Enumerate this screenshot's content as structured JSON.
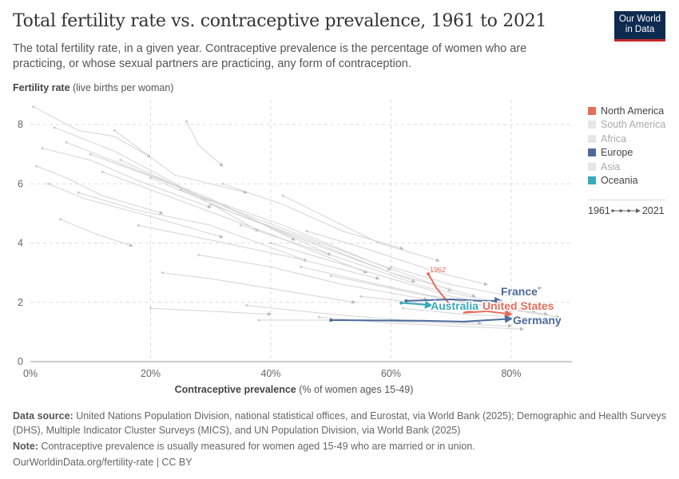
{
  "header": {
    "title": "Total fertility rate vs. contraceptive prevalence, 1961 to 2021",
    "subtitle": "The total fertility rate, in a given year. Contraceptive prevalence is the percentage of women who are practicing, or whose sexual partners are practicing, any form of contraception.",
    "logo": "Our World in Data"
  },
  "chart_data": {
    "type": "scatter",
    "title": "Total fertility rate vs. contraceptive prevalence, 1961 to 2021",
    "ylabel_bold": "Fertility rate",
    "ylabel_rest": " (live births per woman)",
    "xlabel_bold": "Contraceptive prevalence",
    "xlabel_rest": " (% of women ages 15-49)",
    "xlim": [
      0,
      90
    ],
    "ylim": [
      0,
      8.7
    ],
    "x_ticks": [
      "0%",
      "20%",
      "40%",
      "60%",
      "80%"
    ],
    "x_tick_values": [
      0,
      20,
      40,
      60,
      80
    ],
    "y_ticks": [
      "0",
      "2",
      "4",
      "6",
      "8"
    ],
    "y_tick_values": [
      0,
      2,
      4,
      6,
      8
    ],
    "grid": true,
    "legend": [
      {
        "name": "North America",
        "color": "#e56e5a",
        "active": true
      },
      {
        "name": "South America",
        "color": "#e6e6e6",
        "active": false
      },
      {
        "name": "Africa",
        "color": "#e6e6e6",
        "active": false
      },
      {
        "name": "Europe",
        "color": "#4c6a9c",
        "active": true
      },
      {
        "name": "Asia",
        "color": "#e6e6e6",
        "active": false
      },
      {
        "name": "Oceania",
        "color": "#38aaba",
        "active": true
      }
    ],
    "legend_placement": "right",
    "timeline": {
      "start": "1961",
      "end": "2021"
    },
    "series": [
      {
        "name": "United States",
        "region": "North America",
        "color": "#e56e5a",
        "start_label": "1962",
        "points": [
          [
            66.2,
            2.96
          ],
          [
            67.5,
            2.5
          ],
          [
            69.5,
            2.0
          ],
          [
            71,
            1.85
          ],
          [
            74,
            1.75
          ],
          [
            72,
            1.65
          ],
          [
            76,
            1.7
          ],
          [
            80,
            1.6
          ]
        ]
      },
      {
        "name": "France",
        "region": "Europe",
        "color": "#4c6a9c",
        "points": [
          [
            62.5,
            2.05
          ],
          [
            70,
            2.1
          ],
          [
            75,
            2.05
          ],
          [
            78.3,
            2.05
          ]
        ]
      },
      {
        "name": "Germany",
        "region": "Europe",
        "color": "#4c6a9c",
        "points": [
          [
            50,
            1.4
          ],
          [
            65,
            1.38
          ],
          [
            72,
            1.35
          ],
          [
            80,
            1.45
          ]
        ]
      },
      {
        "name": "Australia",
        "region": "Oceania",
        "color": "#38aaba",
        "points": [
          [
            61.7,
            1.98
          ],
          [
            64,
            1.95
          ],
          [
            66.7,
            1.9
          ]
        ]
      }
    ],
    "background_series": [
      [
        [
          0.5,
          8.6
        ],
        [
          8,
          7.8
        ],
        [
          14,
          7.6
        ],
        [
          20,
          6.9
        ]
      ],
      [
        [
          2,
          7.2
        ],
        [
          10,
          6.8
        ],
        [
          18,
          6.1
        ],
        [
          30,
          5.2
        ]
      ],
      [
        [
          1,
          6.6
        ],
        [
          6,
          6.2
        ],
        [
          12,
          5.6
        ],
        [
          22,
          5.0
        ]
      ],
      [
        [
          4,
          7.9
        ],
        [
          14,
          7.1
        ],
        [
          26,
          5.8
        ],
        [
          38,
          4.4
        ]
      ],
      [
        [
          6,
          7.4
        ],
        [
          16,
          6.6
        ],
        [
          30,
          5.5
        ],
        [
          44,
          4.1
        ]
      ],
      [
        [
          3,
          6.0
        ],
        [
          9,
          5.5
        ],
        [
          20,
          4.9
        ],
        [
          32,
          4.2
        ]
      ],
      [
        [
          10,
          7.0
        ],
        [
          22,
          6.1
        ],
        [
          35,
          5.0
        ],
        [
          50,
          3.6
        ]
      ],
      [
        [
          12,
          6.4
        ],
        [
          24,
          5.5
        ],
        [
          40,
          4.3
        ],
        [
          56,
          3.0
        ]
      ],
      [
        [
          8,
          5.7
        ],
        [
          18,
          5.1
        ],
        [
          30,
          4.6
        ],
        [
          46,
          3.4
        ]
      ],
      [
        [
          15,
          6.8
        ],
        [
          28,
          5.6
        ],
        [
          42,
          4.6
        ],
        [
          60,
          3.1
        ]
      ],
      [
        [
          20,
          6.2
        ],
        [
          34,
          5.0
        ],
        [
          48,
          3.9
        ],
        [
          64,
          2.7
        ]
      ],
      [
        [
          25,
          5.8
        ],
        [
          38,
          4.8
        ],
        [
          55,
          3.5
        ],
        [
          70,
          2.4
        ]
      ],
      [
        [
          18,
          4.6
        ],
        [
          30,
          4.1
        ],
        [
          44,
          3.5
        ],
        [
          58,
          2.8
        ]
      ],
      [
        [
          30,
          5.3
        ],
        [
          45,
          4.2
        ],
        [
          60,
          3.0
        ],
        [
          74,
          2.2
        ]
      ],
      [
        [
          35,
          4.6
        ],
        [
          50,
          3.6
        ],
        [
          66,
          2.5
        ],
        [
          80,
          1.9
        ]
      ],
      [
        [
          40,
          4.0
        ],
        [
          55,
          3.1
        ],
        [
          70,
          2.2
        ],
        [
          84,
          1.7
        ]
      ],
      [
        [
          45,
          3.2
        ],
        [
          58,
          2.6
        ],
        [
          72,
          2.0
        ],
        [
          86,
          1.6
        ]
      ],
      [
        [
          26,
          8.1
        ],
        [
          28,
          7.3
        ],
        [
          32,
          6.6
        ]
      ],
      [
        [
          50,
          2.9
        ],
        [
          64,
          2.3
        ],
        [
          78,
          1.8
        ],
        [
          88,
          1.5
        ]
      ],
      [
        [
          36,
          1.9
        ],
        [
          50,
          1.6
        ],
        [
          62,
          1.4
        ],
        [
          75,
          1.3
        ]
      ],
      [
        [
          20,
          1.8
        ],
        [
          30,
          1.7
        ],
        [
          40,
          1.6
        ]
      ],
      [
        [
          48,
          1.5
        ],
        [
          60,
          1.3
        ],
        [
          70,
          1.2
        ],
        [
          82,
          1.1
        ]
      ],
      [
        [
          55,
          2.2
        ],
        [
          68,
          1.9
        ],
        [
          80,
          1.7
        ],
        [
          87,
          1.9
        ]
      ],
      [
        [
          28,
          3.6
        ],
        [
          40,
          3.2
        ],
        [
          52,
          2.6
        ],
        [
          66,
          2.1
        ]
      ],
      [
        [
          22,
          3.0
        ],
        [
          30,
          2.8
        ],
        [
          42,
          2.4
        ],
        [
          54,
          2.0
        ]
      ],
      [
        [
          60,
          3.2
        ],
        [
          70,
          2.6
        ],
        [
          80,
          2.2
        ],
        [
          85,
          2.5
        ]
      ],
      [
        [
          32,
          6.0
        ],
        [
          42,
          5.3
        ],
        [
          52,
          4.4
        ],
        [
          62,
          3.8
        ]
      ],
      [
        [
          5,
          4.8
        ],
        [
          11,
          4.3
        ],
        [
          17,
          3.9
        ]
      ],
      [
        [
          38,
          1.4
        ],
        [
          55,
          1.4
        ],
        [
          68,
          1.3
        ],
        [
          80,
          1.2
        ]
      ],
      [
        [
          62,
          1.8
        ],
        [
          72,
          1.6
        ],
        [
          82,
          1.5
        ],
        [
          88,
          1.4
        ]
      ],
      [
        [
          14,
          7.8
        ],
        [
          18,
          7.2
        ],
        [
          24,
          6.3
        ],
        [
          36,
          5.7
        ]
      ],
      [
        [
          42,
          5.6
        ],
        [
          50,
          4.8
        ],
        [
          58,
          4.0
        ],
        [
          68,
          3.4
        ]
      ],
      [
        [
          46,
          4.4
        ],
        [
          56,
          3.8
        ],
        [
          68,
          3.0
        ],
        [
          76,
          2.6
        ]
      ]
    ]
  },
  "footer": {
    "source_label": "Data source:",
    "source": " United Nations Population Division, national statistical offices, and Eurostat, via World Bank (2025); Demographic and Health Surveys (DHS), Multiple Indicator Cluster Surveys (MICS), and UN Population Division, via World Bank (2025)",
    "note_label": "Note:",
    "note": " Contraceptive prevalence is usually measured for women aged 15-49 who are married or in union.",
    "url": "OurWorldinData.org/fertility-rate | CC BY"
  }
}
